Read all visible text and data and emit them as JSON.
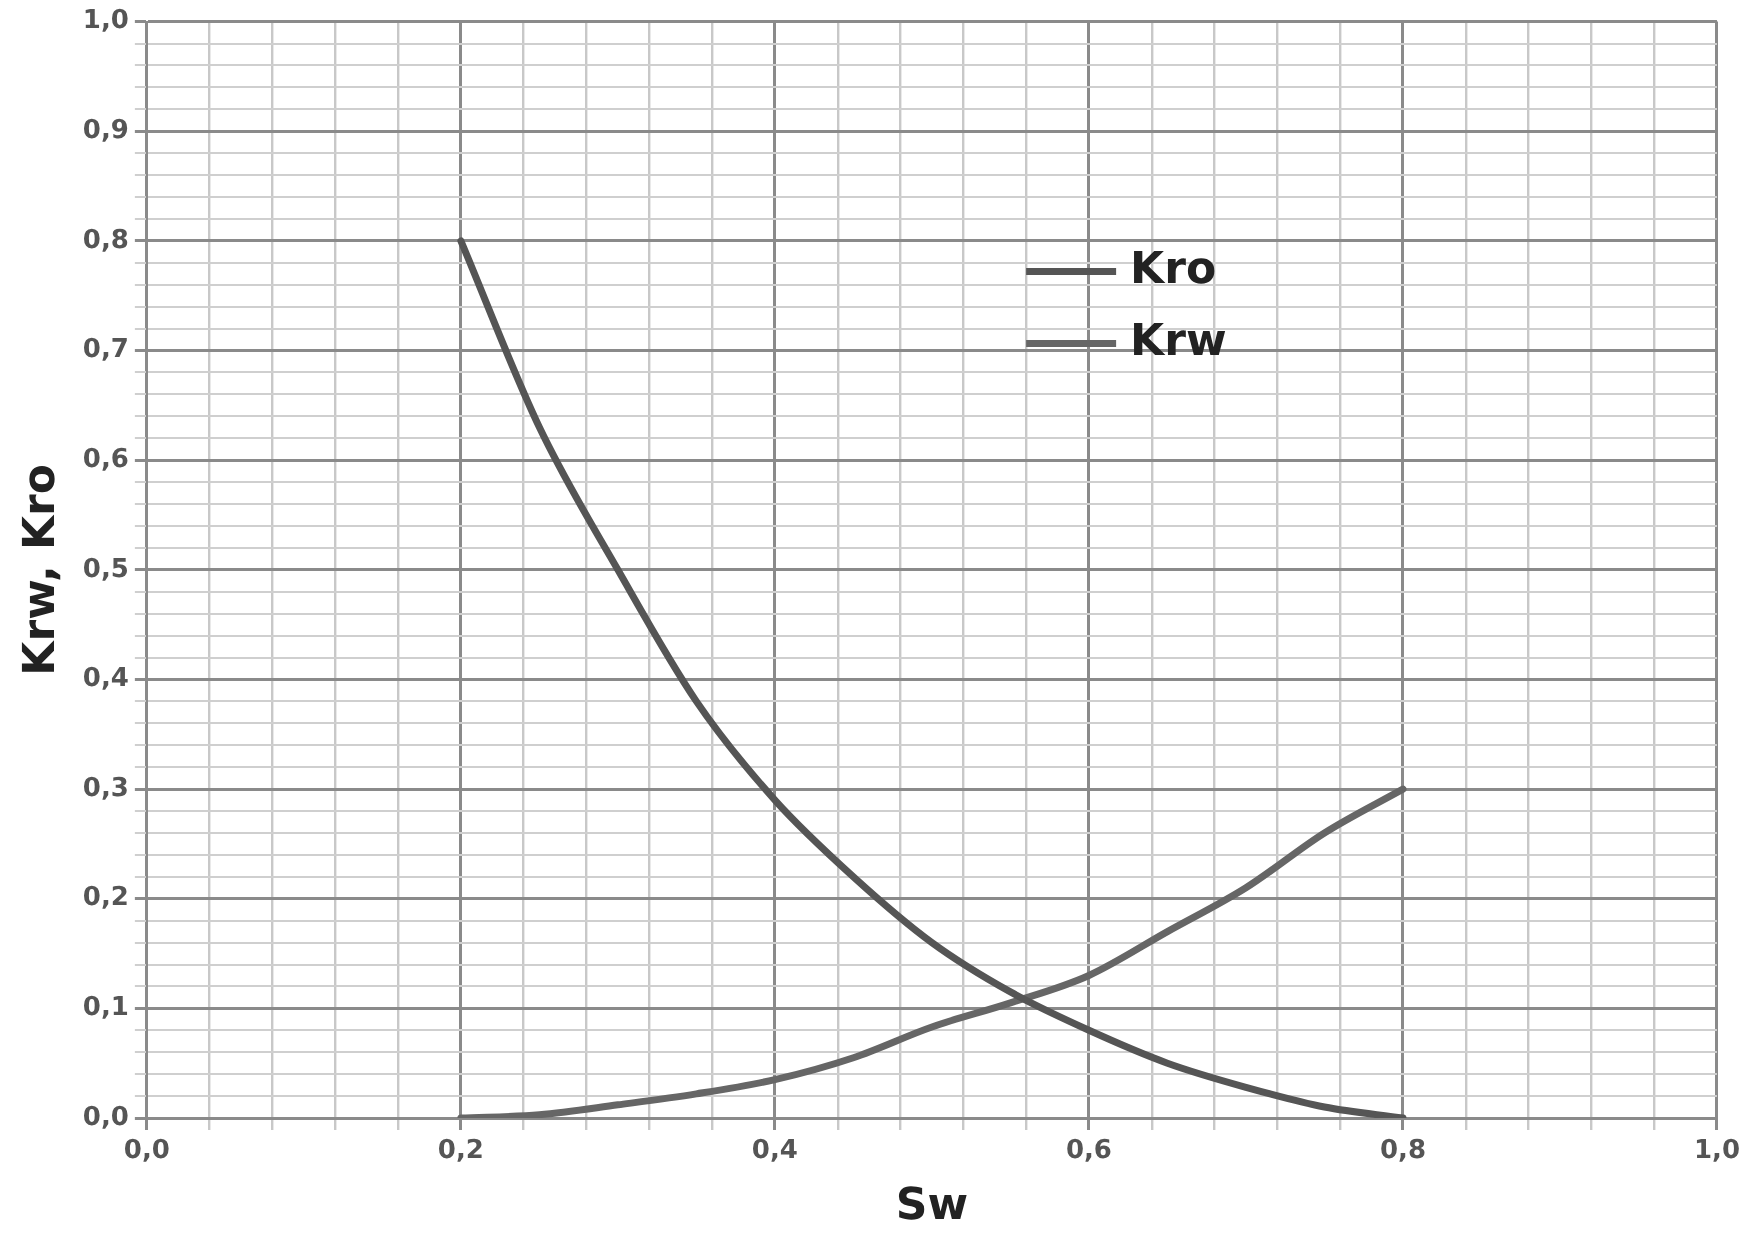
{
  "chart_data": {
    "type": "line",
    "xlabel": "Sw",
    "ylabel": "Krw, Kro",
    "legend": "top right",
    "grid": true,
    "marker": "none",
    "line_style": "solid",
    "xlim": [
      0,
      1
    ],
    "ylim": [
      0,
      1
    ],
    "xticks": [
      {
        "value": 0,
        "label": "0,0"
      },
      {
        "value": 0.04,
        "label": null
      },
      {
        "value": 0.08,
        "label": null
      },
      {
        "value": 0.12,
        "label": null
      },
      {
        "value": 0.16,
        "label": null
      },
      {
        "value": 0.2,
        "label": "0,2"
      },
      {
        "value": 0.24,
        "label": null
      },
      {
        "value": 0.28,
        "label": null
      },
      {
        "value": 0.32,
        "label": null
      },
      {
        "value": 0.36,
        "label": null
      },
      {
        "value": 0.4,
        "label": "0,4"
      },
      {
        "value": 0.44,
        "label": null
      },
      {
        "value": 0.48,
        "label": null
      },
      {
        "value": 0.52,
        "label": null
      },
      {
        "value": 0.56,
        "label": null
      },
      {
        "value": 0.6,
        "label": "0,6"
      },
      {
        "value": 0.64,
        "label": null
      },
      {
        "value": 0.68,
        "label": null
      },
      {
        "value": 0.72,
        "label": null
      },
      {
        "value": 0.76,
        "label": null
      },
      {
        "value": 0.8,
        "label": "0,8"
      },
      {
        "value": 0.84,
        "label": null
      },
      {
        "value": 0.88,
        "label": null
      },
      {
        "value": 0.92,
        "label": null
      },
      {
        "value": 0.96,
        "label": null
      },
      {
        "value": 1,
        "label": "1,0"
      }
    ],
    "yticks": [
      {
        "value": 0,
        "label": "0,0"
      },
      {
        "value": 0.02,
        "label": null
      },
      {
        "value": 0.04,
        "label": null
      },
      {
        "value": 0.06,
        "label": null
      },
      {
        "value": 0.08,
        "label": null
      },
      {
        "value": 0.1,
        "label": "0,1"
      },
      {
        "value": 0.12,
        "label": null
      },
      {
        "value": 0.14,
        "label": null
      },
      {
        "value": 0.16,
        "label": null
      },
      {
        "value": 0.18,
        "label": null
      },
      {
        "value": 0.2,
        "label": "0,2"
      },
      {
        "value": 0.22,
        "label": null
      },
      {
        "value": 0.24,
        "label": null
      },
      {
        "value": 0.26,
        "label": null
      },
      {
        "value": 0.28,
        "label": null
      },
      {
        "value": 0.3,
        "label": "0,3"
      },
      {
        "value": 0.32,
        "label": null
      },
      {
        "value": 0.34,
        "label": null
      },
      {
        "value": 0.36,
        "label": null
      },
      {
        "value": 0.38,
        "label": null
      },
      {
        "value": 0.4,
        "label": "0,4"
      },
      {
        "value": 0.42,
        "label": null
      },
      {
        "value": 0.44,
        "label": null
      },
      {
        "value": 0.46,
        "label": null
      },
      {
        "value": 0.48,
        "label": null
      },
      {
        "value": 0.5,
        "label": "0,5"
      },
      {
        "value": 0.52,
        "label": null
      },
      {
        "value": 0.54,
        "label": null
      },
      {
        "value": 0.56,
        "label": null
      },
      {
        "value": 0.58,
        "label": null
      },
      {
        "value": 0.6,
        "label": "0,6"
      },
      {
        "value": 0.62,
        "label": null
      },
      {
        "value": 0.64,
        "label": null
      },
      {
        "value": 0.66,
        "label": null
      },
      {
        "value": 0.68,
        "label": null
      },
      {
        "value": 0.7,
        "label": "0,7"
      },
      {
        "value": 0.72,
        "label": null
      },
      {
        "value": 0.74,
        "label": null
      },
      {
        "value": 0.76,
        "label": null
      },
      {
        "value": 0.78,
        "label": null
      },
      {
        "value": 0.8,
        "label": "0,8"
      },
      {
        "value": 0.82,
        "label": null
      },
      {
        "value": 0.84,
        "label": null
      },
      {
        "value": 0.86,
        "label": null
      },
      {
        "value": 0.88,
        "label": null
      },
      {
        "value": 0.9,
        "label": "0,9"
      },
      {
        "value": 0.92,
        "label": null
      },
      {
        "value": 0.94,
        "label": null
      },
      {
        "value": 0.96,
        "label": null
      },
      {
        "value": 0.98,
        "label": null
      },
      {
        "value": 1,
        "label": "1,0"
      }
    ],
    "x": [
      0.2,
      0.25,
      0.3,
      0.35,
      0.4,
      0.45,
      0.5,
      0.55,
      0.6,
      0.65,
      0.7,
      0.75,
      0.8
    ],
    "series": [
      {
        "name": "Kro",
        "color": "#555555",
        "values": [
          0.8,
          0.63,
          0.5,
          0.38,
          0.29,
          0.22,
          0.16,
          0.115,
          0.08,
          0.05,
          0.028,
          0.01,
          0
        ]
      },
      {
        "name": "Krw",
        "color": "#666666",
        "values": [
          0,
          0.003,
          0.012,
          0.022,
          0.035,
          0.055,
          0.083,
          0.105,
          0.13,
          0.17,
          0.21,
          0.26,
          0.3
        ]
      }
    ]
  }
}
